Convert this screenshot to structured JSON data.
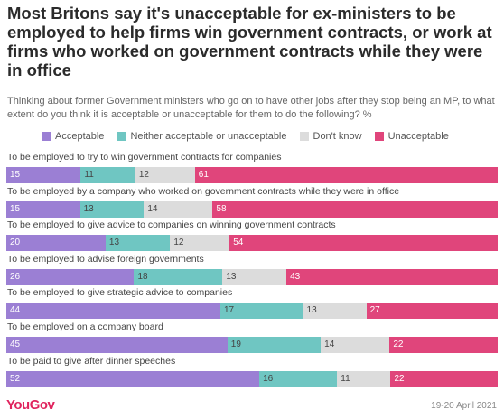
{
  "title": "Most Britons say it's unacceptable for ex-ministers to be employed to help firms win government contracts, or work at firms who worked on government contracts while they were in office",
  "subtitle": "Thinking about former Government ministers who go on to have other jobs after they stop being an MP, to what extent do you think it is acceptable or unacceptable for them to do the following? %",
  "source_logo": "YouGov",
  "date": "19-20 April 2021",
  "colors": {
    "acceptable": "#9b7fd4",
    "neither": "#6fc6c2",
    "dont_know": "#dcdcdc",
    "unacceptable": "#e0457b"
  },
  "chart_data": {
    "type": "bar",
    "orientation": "horizontal-stacked",
    "legend_position": "top",
    "xlim": [
      0,
      100
    ],
    "categories": [
      "To be employed to try to win government contracts for companies",
      "To be employed by a company who worked on government contracts while they were in office",
      "To be employed to give advice to companies on winning government contracts",
      "To be employed to advise foreign governments",
      "To be employed to give strategic advice to companies",
      "To be employed on a company board",
      "To be paid to give after dinner speeches"
    ],
    "series": [
      {
        "name": "Acceptable",
        "key": "acceptable",
        "values": [
          15,
          15,
          20,
          26,
          44,
          45,
          52
        ]
      },
      {
        "name": "Neither acceptable or unacceptable",
        "key": "neither",
        "values": [
          11,
          13,
          13,
          18,
          17,
          19,
          16
        ]
      },
      {
        "name": "Don't know",
        "key": "dont_know",
        "values": [
          12,
          14,
          12,
          13,
          13,
          14,
          11
        ]
      },
      {
        "name": "Unacceptable",
        "key": "unacceptable",
        "values": [
          61,
          58,
          54,
          43,
          27,
          22,
          22
        ]
      }
    ]
  }
}
